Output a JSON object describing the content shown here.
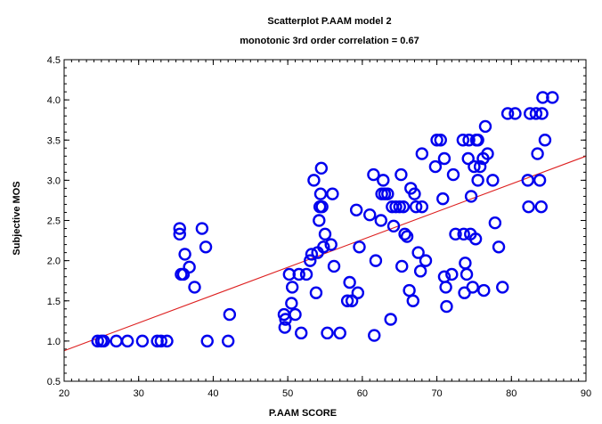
{
  "chart_data": {
    "type": "scatter",
    "title": "Scatterplot P.AAM model 2",
    "subtitle": "monotonic 3rd order correlation = 0.67",
    "xlabel": "P.AAM SCORE",
    "ylabel": "Subjective MOS",
    "xlim": [
      20,
      90
    ],
    "ylim": [
      0.5,
      4.5
    ],
    "x_ticks": [
      "20",
      "30",
      "40",
      "50",
      "60",
      "70",
      "80",
      "90"
    ],
    "y_ticks": [
      "0.5",
      "1.0",
      "1.5",
      "2.0",
      "2.5",
      "3.0",
      "3.5",
      "4.0",
      "4.5"
    ],
    "grid": false,
    "colors": {
      "points": "#0000ee",
      "fit_line": "#dd2020",
      "frame": "#000000"
    },
    "fit_line": {
      "x": [
        20,
        90
      ],
      "y": [
        0.88,
        3.3
      ]
    },
    "points": [
      [
        24.5,
        1.0
      ],
      [
        25.0,
        1.0
      ],
      [
        25.3,
        1.0
      ],
      [
        27.0,
        1.0
      ],
      [
        28.5,
        1.0
      ],
      [
        30.5,
        1.0
      ],
      [
        32.5,
        1.0
      ],
      [
        33.0,
        1.0
      ],
      [
        33.8,
        1.0
      ],
      [
        39.2,
        1.0
      ],
      [
        42.0,
        1.0
      ],
      [
        35.5,
        2.4
      ],
      [
        35.5,
        2.33
      ],
      [
        35.7,
        1.83
      ],
      [
        36.0,
        1.83
      ],
      [
        36.2,
        2.08
      ],
      [
        36.8,
        1.92
      ],
      [
        37.5,
        1.67
      ],
      [
        38.5,
        2.4
      ],
      [
        39.0,
        2.17
      ],
      [
        42.2,
        1.33
      ],
      [
        49.5,
        1.33
      ],
      [
        49.6,
        1.17
      ],
      [
        49.7,
        1.27
      ],
      [
        50.2,
        1.83
      ],
      [
        50.5,
        1.47
      ],
      [
        50.6,
        1.67
      ],
      [
        51.0,
        1.33
      ],
      [
        51.5,
        1.83
      ],
      [
        51.8,
        1.1
      ],
      [
        52.5,
        1.83
      ],
      [
        53.0,
        2.0
      ],
      [
        53.2,
        2.08
      ],
      [
        53.5,
        3.0
      ],
      [
        53.8,
        1.6
      ],
      [
        54.0,
        2.1
      ],
      [
        54.2,
        2.5
      ],
      [
        54.3,
        2.67
      ],
      [
        54.4,
        2.83
      ],
      [
        54.5,
        3.15
      ],
      [
        54.6,
        2.67
      ],
      [
        54.8,
        2.17
      ],
      [
        55.0,
        2.33
      ],
      [
        55.3,
        1.1
      ],
      [
        55.8,
        2.2
      ],
      [
        56.0,
        2.83
      ],
      [
        56.2,
        1.93
      ],
      [
        57.0,
        1.1
      ],
      [
        58.0,
        1.5
      ],
      [
        58.3,
        1.73
      ],
      [
        58.6,
        1.5
      ],
      [
        59.2,
        2.63
      ],
      [
        59.4,
        1.6
      ],
      [
        59.6,
        2.17
      ],
      [
        61.0,
        2.57
      ],
      [
        61.5,
        3.07
      ],
      [
        61.6,
        1.07
      ],
      [
        61.8,
        2.0
      ],
      [
        62.5,
        2.5
      ],
      [
        62.6,
        2.83
      ],
      [
        62.8,
        3.0
      ],
      [
        63.0,
        2.83
      ],
      [
        63.4,
        2.83
      ],
      [
        63.8,
        1.27
      ],
      [
        64.0,
        2.67
      ],
      [
        64.2,
        2.43
      ],
      [
        64.5,
        2.67
      ],
      [
        65.0,
        2.67
      ],
      [
        65.2,
        3.07
      ],
      [
        65.3,
        1.93
      ],
      [
        65.5,
        2.67
      ],
      [
        65.7,
        2.33
      ],
      [
        66.0,
        2.3
      ],
      [
        66.3,
        1.63
      ],
      [
        66.5,
        2.9
      ],
      [
        66.8,
        1.5
      ],
      [
        67.0,
        2.83
      ],
      [
        67.2,
        2.67
      ],
      [
        67.5,
        2.1
      ],
      [
        67.8,
        1.87
      ],
      [
        68.0,
        2.67
      ],
      [
        68.0,
        3.33
      ],
      [
        68.5,
        2.0
      ],
      [
        69.8,
        3.17
      ],
      [
        70.0,
        3.5
      ],
      [
        70.5,
        3.5
      ],
      [
        70.8,
        2.77
      ],
      [
        71.0,
        3.27
      ],
      [
        71.0,
        1.8
      ],
      [
        71.2,
        1.67
      ],
      [
        71.3,
        1.43
      ],
      [
        72.0,
        1.83
      ],
      [
        72.2,
        3.07
      ],
      [
        72.5,
        2.33
      ],
      [
        73.5,
        3.5
      ],
      [
        73.6,
        2.33
      ],
      [
        73.7,
        1.6
      ],
      [
        73.8,
        1.97
      ],
      [
        74.0,
        1.83
      ],
      [
        74.2,
        3.27
      ],
      [
        74.3,
        3.5
      ],
      [
        74.5,
        2.33
      ],
      [
        74.6,
        2.8
      ],
      [
        74.8,
        1.67
      ],
      [
        75.0,
        3.17
      ],
      [
        75.2,
        2.27
      ],
      [
        75.3,
        3.5
      ],
      [
        75.5,
        3.5
      ],
      [
        75.5,
        3.0
      ],
      [
        75.8,
        3.17
      ],
      [
        76.2,
        3.27
      ],
      [
        76.3,
        1.63
      ],
      [
        76.5,
        3.67
      ],
      [
        76.8,
        3.33
      ],
      [
        77.5,
        3.0
      ],
      [
        77.8,
        2.47
      ],
      [
        78.3,
        2.17
      ],
      [
        78.8,
        1.67
      ],
      [
        79.5,
        3.83
      ],
      [
        80.5,
        3.83
      ],
      [
        82.2,
        3.0
      ],
      [
        82.3,
        2.67
      ],
      [
        82.5,
        3.83
      ],
      [
        83.3,
        3.83
      ],
      [
        83.5,
        3.33
      ],
      [
        83.8,
        3.0
      ],
      [
        84.0,
        2.67
      ],
      [
        84.1,
        3.83
      ],
      [
        84.2,
        4.03
      ],
      [
        84.5,
        3.5
      ],
      [
        85.5,
        4.03
      ]
    ]
  }
}
